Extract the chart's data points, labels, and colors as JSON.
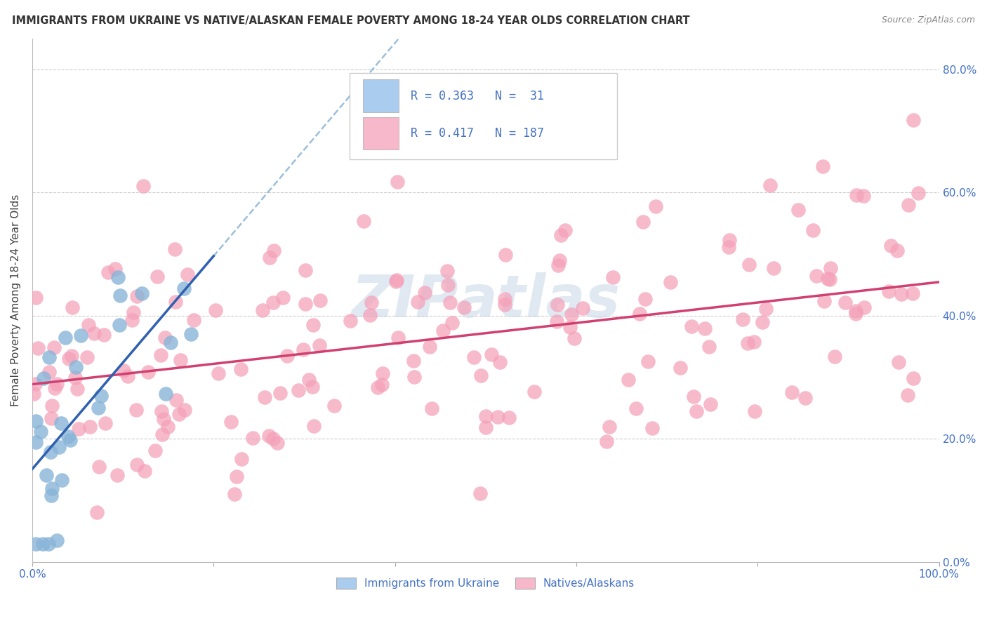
{
  "title": "IMMIGRANTS FROM UKRAINE VS NATIVE/ALASKAN FEMALE POVERTY AMONG 18-24 YEAR OLDS CORRELATION CHART",
  "source": "Source: ZipAtlas.com",
  "ylabel": "Female Poverty Among 18-24 Year Olds",
  "xlim": [
    0.0,
    1.0
  ],
  "ylim": [
    0.0,
    0.85
  ],
  "x_ticks": [
    0.0,
    0.2,
    0.4,
    0.6,
    0.8,
    1.0
  ],
  "x_tick_labels": [
    "0.0%",
    "",
    "",
    "",
    "",
    "100.0%"
  ],
  "y_ticks": [
    0.0,
    0.2,
    0.4,
    0.6,
    0.8
  ],
  "y_tick_labels_right": [
    "0.0%",
    "20.0%",
    "40.0%",
    "60.0%",
    "80.0%"
  ],
  "ukraine_R": 0.363,
  "ukraine_N": 31,
  "native_R": 0.417,
  "native_N": 187,
  "ukraine_scatter_color": "#88b4d8",
  "native_scatter_color": "#f4a0b8",
  "ukraine_line_color": "#3060b0",
  "native_line_color": "#d04070",
  "ukraine_dashed_color": "#90b8d8",
  "background_color": "#ffffff",
  "grid_color": "#cccccc",
  "legend_ukraine_label": "Immigrants from Ukraine",
  "legend_native_label": "Natives/Alaskans",
  "legend_ukraine_color": "#aaccee",
  "legend_native_color": "#f8b8cc",
  "watermark_color": "#c8d8e8",
  "title_fontsize": 10.5,
  "axis_label_fontsize": 11,
  "tick_fontsize": 11
}
